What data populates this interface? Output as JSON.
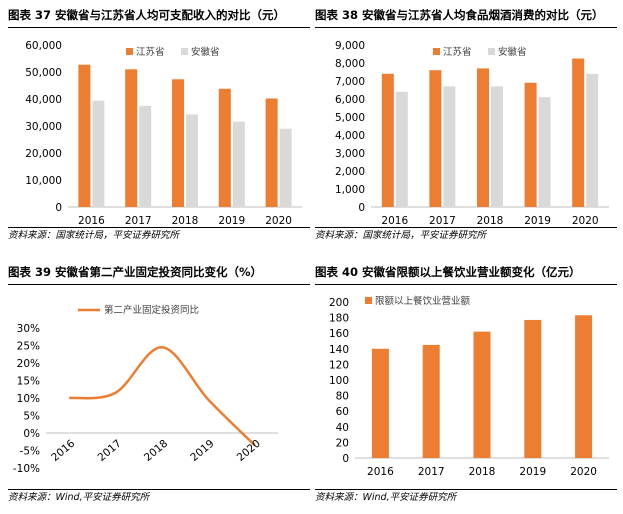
{
  "panels": [
    {
      "title": "图表 37  安徽省与江苏省人均可支配收入的对比（元）",
      "source": "资料来源：国家统计局，平安证券研究所",
      "chart_data": {
        "type": "bar",
        "title": "安徽省与江苏省人均可支配收入的对比（元）",
        "categories": [
          "2016",
          "2017",
          "2018",
          "2019",
          "2020"
        ],
        "series": [
          {
            "name": "江苏省",
            "color": "#ED7D31",
            "values": [
              52700,
              51000,
              47300,
              43800,
              40200
            ]
          },
          {
            "name": "安徽省",
            "color": "#D9D9D9",
            "values": [
              39400,
              37500,
              34300,
              31600,
              29000
            ]
          }
        ],
        "yticks": [
          "0",
          "10,000",
          "20,000",
          "30,000",
          "40,000",
          "50,000",
          "60,000"
        ],
        "ylim": [
          0,
          60000
        ],
        "legend": "top-center"
      }
    },
    {
      "title": "图表 38  安徽省与江苏省人均食品烟酒消费的对比（元）",
      "source": "资料来源：国家统计局，平安证券研究所",
      "chart_data": {
        "type": "bar",
        "title": "安徽省与江苏省人均食品烟酒消费的对比（元）",
        "categories": [
          "2016",
          "2017",
          "2018",
          "2019",
          "2020"
        ],
        "series": [
          {
            "name": "江苏省",
            "color": "#ED7D31",
            "values": [
              7400,
              7600,
              7700,
              6900,
              8250
            ]
          },
          {
            "name": "安徽省",
            "color": "#D9D9D9",
            "values": [
              6400,
              6700,
              6700,
              6100,
              7400
            ]
          }
        ],
        "yticks": [
          "0",
          "1,000",
          "2,000",
          "3,000",
          "4,000",
          "5,000",
          "6,000",
          "7,000",
          "8,000",
          "9,000"
        ],
        "ylim": [
          0,
          9000
        ],
        "legend": "top-center"
      }
    },
    {
      "title": "图表 39  安徽省第二产业固定投资同比变化（%）",
      "source": "资料来源：Wind,平安证券研究所",
      "chart_data": {
        "type": "line",
        "title": "安徽省第二产业固定投资同比变化（%）",
        "categories": [
          "2016",
          "2017",
          "2018",
          "2019",
          "2020"
        ],
        "series": [
          {
            "name": "第二产业固定投资同比",
            "color": "#ED7D31",
            "values": [
              10,
              11.5,
              24.5,
              9.5,
              -3.5
            ]
          }
        ],
        "yticks": [
          "-10%",
          "-5%",
          "0%",
          "5%",
          "10%",
          "15%",
          "20%",
          "25%",
          "30%"
        ],
        "ylim": [
          -10,
          30
        ],
        "legend": "top-center"
      }
    },
    {
      "title": "图表 40  安徽省限额以上餐饮业营业额变化（亿元）",
      "source": "资料来源：Wind,平安证券研究所",
      "chart_data": {
        "type": "bar",
        "title": "安徽省限额以上餐饮业营业额变化（亿元）",
        "categories": [
          "2016",
          "2017",
          "2018",
          "2019",
          "2020"
        ],
        "series": [
          {
            "name": "限额以上餐饮业营业额",
            "color": "#ED7D31",
            "values": [
              140,
              145,
              162,
              177,
              183
            ]
          }
        ],
        "yticks": [
          "0",
          "20",
          "40",
          "60",
          "80",
          "100",
          "120",
          "140",
          "160",
          "180",
          "200"
        ],
        "ylim": [
          0,
          200
        ],
        "legend": "top-left"
      }
    }
  ]
}
